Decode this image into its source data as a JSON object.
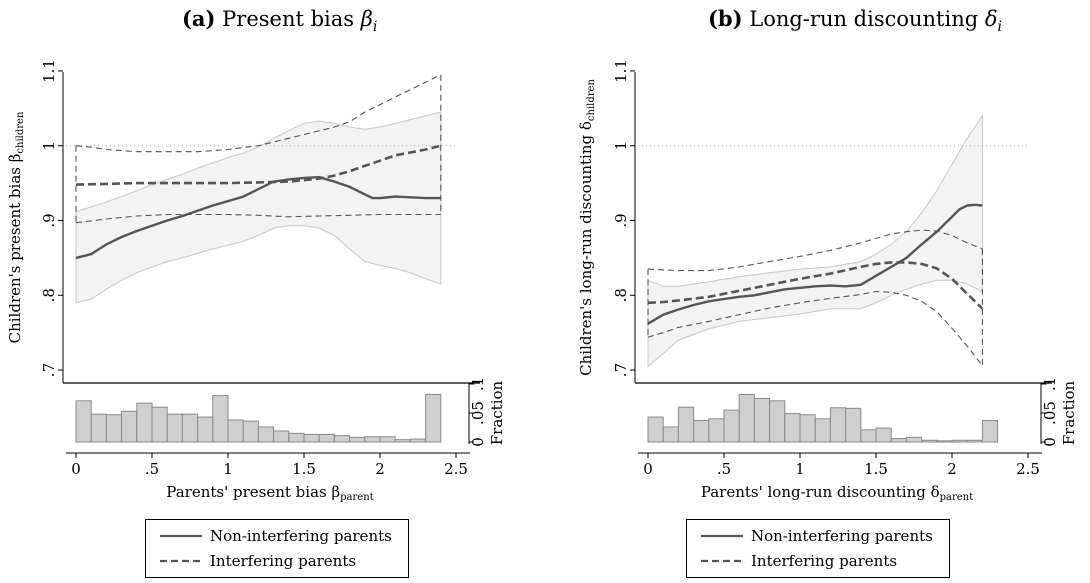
{
  "panels": [
    {
      "id": "a",
      "title": {
        "label": "(a)",
        "text": "Present bias",
        "symbol": "β",
        "subscript": "i"
      },
      "ylabel": {
        "text": "Children's present bias β",
        "sub": "children"
      },
      "xlabel": {
        "text": "Parents' present bias β",
        "sub": "parent"
      }
    },
    {
      "id": "b",
      "title": {
        "label": "(b)",
        "text": "Long-run discounting",
        "symbol": "δ",
        "subscript": "i"
      },
      "ylabel": {
        "text": "Children's long-run discounting δ",
        "sub": "children"
      },
      "xlabel": {
        "text": "Parents' long-run discounting δ",
        "sub": "parent"
      }
    }
  ],
  "histogram_ylabel": "Fraction",
  "legend": {
    "non_interfering": "Non-interfering parents",
    "interfering": "Interfering parents"
  },
  "colors": {
    "ci_fill": "#f3f3f3",
    "ci_edge": "#c8c8c8",
    "line_solid": "#555555",
    "line_dashed": "#555555",
    "hist_fill": "#cfcfcf",
    "hist_edge": "#8a8a8a",
    "reference_line": "#aaaaaa"
  },
  "chart_data": [
    {
      "type": "line",
      "panel": "a",
      "xlim": [
        0,
        2.5
      ],
      "xticks": [
        "0",
        ".5",
        "1",
        "1.5",
        "2",
        "2.5"
      ],
      "xtick_values": [
        0,
        0.5,
        1,
        1.5,
        2,
        2.5
      ],
      "ylim": [
        0.68,
        1.12
      ],
      "yticks": [
        ".7",
        ".8",
        ".9",
        "1",
        "1.1"
      ],
      "ytick_values": [
        0.7,
        0.8,
        0.9,
        1.0,
        1.1
      ],
      "reference_y": 1.0,
      "series": [
        {
          "name": "Non-interfering parents",
          "style": "solid",
          "x": [
            0,
            0.1,
            0.2,
            0.3,
            0.4,
            0.5,
            0.6,
            0.7,
            0.8,
            0.9,
            1.0,
            1.1,
            1.2,
            1.3,
            1.4,
            1.5,
            1.6,
            1.7,
            1.8,
            1.9,
            1.95,
            2.0,
            2.1,
            2.2,
            2.3,
            2.4
          ],
          "y": [
            0.85,
            0.855,
            0.868,
            0.878,
            0.886,
            0.893,
            0.9,
            0.906,
            0.913,
            0.92,
            0.926,
            0.932,
            0.942,
            0.952,
            0.955,
            0.957,
            0.958,
            0.952,
            0.945,
            0.935,
            0.93,
            0.93,
            0.932,
            0.931,
            0.93,
            0.93
          ]
        },
        {
          "name": "Non-interfering parents 95% CI upper",
          "style": "band",
          "x": [
            0,
            0.1,
            0.2,
            0.3,
            0.4,
            0.5,
            0.6,
            0.7,
            0.8,
            0.9,
            1.0,
            1.1,
            1.2,
            1.3,
            1.4,
            1.5,
            1.6,
            1.7,
            1.8,
            1.9,
            2.0,
            2.1,
            2.2,
            2.3,
            2.4
          ],
          "y": [
            0.912,
            0.918,
            0.925,
            0.932,
            0.94,
            0.948,
            0.955,
            0.962,
            0.97,
            0.977,
            0.984,
            0.99,
            0.998,
            1.01,
            1.02,
            1.03,
            1.033,
            1.03,
            1.025,
            1.022,
            1.025,
            1.03,
            1.035,
            1.04,
            1.045
          ]
        },
        {
          "name": "Non-interfering parents 95% CI lower",
          "style": "band",
          "x": [
            0,
            0.1,
            0.2,
            0.3,
            0.4,
            0.5,
            0.6,
            0.7,
            0.8,
            0.9,
            1.0,
            1.1,
            1.2,
            1.3,
            1.4,
            1.5,
            1.6,
            1.7,
            1.8,
            1.9,
            2.0,
            2.1,
            2.2,
            2.3,
            2.4
          ],
          "y": [
            0.79,
            0.795,
            0.808,
            0.82,
            0.83,
            0.838,
            0.845,
            0.85,
            0.856,
            0.862,
            0.867,
            0.872,
            0.88,
            0.89,
            0.893,
            0.893,
            0.89,
            0.88,
            0.862,
            0.845,
            0.84,
            0.836,
            0.83,
            0.822,
            0.815
          ]
        },
        {
          "name": "Interfering parents",
          "style": "dashed-thick",
          "x": [
            0,
            0.2,
            0.4,
            0.6,
            0.8,
            1.0,
            1.2,
            1.4,
            1.6,
            1.7,
            1.8,
            1.9,
            2.0,
            2.1,
            2.2,
            2.3,
            2.4
          ],
          "y": [
            0.948,
            0.949,
            0.95,
            0.95,
            0.95,
            0.95,
            0.951,
            0.952,
            0.956,
            0.96,
            0.966,
            0.973,
            0.98,
            0.987,
            0.991,
            0.995,
            1.0
          ]
        },
        {
          "name": "Interfering parents 95% CI upper",
          "style": "dashed-thin",
          "x": [
            0,
            0.1,
            0.2,
            0.4,
            0.6,
            0.8,
            1.0,
            1.2,
            1.4,
            1.6,
            1.7,
            1.8,
            1.9,
            2.0,
            2.1,
            2.2,
            2.3,
            2.4
          ],
          "y": [
            1.0,
            0.998,
            0.995,
            0.992,
            0.992,
            0.992,
            0.995,
            1.0,
            1.01,
            1.02,
            1.025,
            1.032,
            1.045,
            1.055,
            1.065,
            1.075,
            1.085,
            1.095
          ]
        },
        {
          "name": "Interfering parents 95% CI lower",
          "style": "dashed-thin",
          "x": [
            0,
            0.2,
            0.4,
            0.6,
            0.8,
            1.0,
            1.2,
            1.4,
            1.6,
            1.8,
            2.0,
            2.2,
            2.4
          ],
          "y": [
            0.897,
            0.902,
            0.906,
            0.908,
            0.908,
            0.908,
            0.907,
            0.905,
            0.906,
            0.907,
            0.908,
            0.908,
            0.908
          ]
        }
      ],
      "histogram": {
        "ylim": [
          0,
          0.1
        ],
        "yticks": [
          "0",
          ".05",
          ".1"
        ],
        "ytick_values": [
          0,
          0.05,
          0.1
        ],
        "bin_width": 0.1,
        "bin_starts": [
          0.0,
          0.1,
          0.2,
          0.3,
          0.4,
          0.5,
          0.6,
          0.7,
          0.8,
          0.9,
          1.0,
          1.1,
          1.2,
          1.3,
          1.4,
          1.5,
          1.6,
          1.7,
          1.8,
          1.9,
          2.0,
          2.1,
          2.2,
          2.3
        ],
        "values": [
          0.071,
          0.048,
          0.047,
          0.053,
          0.067,
          0.06,
          0.048,
          0.048,
          0.043,
          0.08,
          0.038,
          0.036,
          0.026,
          0.019,
          0.015,
          0.013,
          0.013,
          0.011,
          0.008,
          0.009,
          0.009,
          0.004,
          0.005,
          0.082
        ]
      }
    },
    {
      "type": "line",
      "panel": "b",
      "xlim": [
        0,
        2.5
      ],
      "xticks": [
        "0",
        ".5",
        "1",
        "1.5",
        "2",
        "2.5"
      ],
      "xtick_values": [
        0,
        0.5,
        1,
        1.5,
        2,
        2.5
      ],
      "ylim": [
        0.68,
        1.12
      ],
      "yticks": [
        ".7",
        ".8",
        ".9",
        "1",
        "1.1"
      ],
      "ytick_values": [
        0.7,
        0.8,
        0.9,
        1.0,
        1.1
      ],
      "reference_y": 1.0,
      "series": [
        {
          "name": "Non-interfering parents",
          "style": "solid",
          "x": [
            0,
            0.05,
            0.1,
            0.2,
            0.3,
            0.4,
            0.5,
            0.6,
            0.7,
            0.8,
            0.9,
            1.0,
            1.1,
            1.2,
            1.3,
            1.4,
            1.5,
            1.6,
            1.7,
            1.8,
            1.9,
            2.0,
            2.05,
            2.1,
            2.15,
            2.2
          ],
          "y": [
            0.762,
            0.768,
            0.774,
            0.781,
            0.787,
            0.792,
            0.795,
            0.798,
            0.8,
            0.804,
            0.808,
            0.81,
            0.812,
            0.813,
            0.812,
            0.814,
            0.826,
            0.838,
            0.85,
            0.868,
            0.885,
            0.905,
            0.915,
            0.92,
            0.921,
            0.92
          ]
        },
        {
          "name": "Non-interfering parents 95% CI upper",
          "style": "band",
          "x": [
            0,
            0.1,
            0.2,
            0.4,
            0.6,
            0.8,
            1.0,
            1.2,
            1.4,
            1.5,
            1.6,
            1.7,
            1.8,
            1.9,
            2.0,
            2.1,
            2.2
          ],
          "y": [
            0.82,
            0.812,
            0.812,
            0.818,
            0.825,
            0.83,
            0.835,
            0.838,
            0.845,
            0.855,
            0.868,
            0.885,
            0.91,
            0.94,
            0.975,
            1.01,
            1.04
          ]
        },
        {
          "name": "Non-interfering parents 95% CI lower",
          "style": "band",
          "x": [
            0,
            0.1,
            0.2,
            0.4,
            0.6,
            0.8,
            1.0,
            1.2,
            1.4,
            1.5,
            1.6,
            1.7,
            1.8,
            1.9,
            2.0,
            2.1,
            2.2
          ],
          "y": [
            0.705,
            0.722,
            0.74,
            0.755,
            0.765,
            0.77,
            0.775,
            0.782,
            0.782,
            0.79,
            0.8,
            0.808,
            0.815,
            0.82,
            0.82,
            0.815,
            0.805
          ]
        },
        {
          "name": "Interfering parents",
          "style": "dashed-thick",
          "x": [
            0,
            0.1,
            0.2,
            0.4,
            0.6,
            0.8,
            1.0,
            1.2,
            1.4,
            1.5,
            1.6,
            1.7,
            1.8,
            1.9,
            2.0,
            2.1,
            2.2
          ],
          "y": [
            0.79,
            0.791,
            0.793,
            0.798,
            0.806,
            0.814,
            0.822,
            0.829,
            0.838,
            0.842,
            0.844,
            0.844,
            0.842,
            0.836,
            0.822,
            0.802,
            0.782
          ]
        },
        {
          "name": "Interfering parents 95% CI upper",
          "style": "dashed-thin",
          "x": [
            0,
            0.2,
            0.4,
            0.6,
            0.8,
            1.0,
            1.2,
            1.4,
            1.5,
            1.6,
            1.7,
            1.8,
            1.9,
            2.0,
            2.1,
            2.2
          ],
          "y": [
            0.835,
            0.833,
            0.833,
            0.838,
            0.845,
            0.852,
            0.86,
            0.87,
            0.876,
            0.882,
            0.885,
            0.887,
            0.886,
            0.88,
            0.87,
            0.862
          ]
        },
        {
          "name": "Interfering parents 95% CI lower",
          "style": "dashed-thin",
          "x": [
            0,
            0.1,
            0.2,
            0.4,
            0.6,
            0.8,
            1.0,
            1.2,
            1.4,
            1.5,
            1.6,
            1.7,
            1.8,
            1.9,
            2.0,
            2.1,
            2.2
          ],
          "y": [
            0.744,
            0.75,
            0.757,
            0.765,
            0.774,
            0.783,
            0.79,
            0.796,
            0.801,
            0.805,
            0.804,
            0.8,
            0.792,
            0.778,
            0.756,
            0.732,
            0.706
          ]
        }
      ],
      "histogram": {
        "ylim": [
          0,
          0.1
        ],
        "yticks": [
          "0",
          ".05",
          ".1"
        ],
        "ytick_values": [
          0,
          0.05,
          0.1
        ],
        "bin_width": 0.1,
        "bin_starts": [
          0.0,
          0.1,
          0.2,
          0.3,
          0.4,
          0.5,
          0.6,
          0.7,
          0.8,
          0.9,
          1.0,
          1.1,
          1.2,
          1.3,
          1.4,
          1.5,
          1.6,
          1.7,
          1.8,
          1.9,
          2.0,
          2.1,
          2.2
        ],
        "values": [
          0.043,
          0.026,
          0.06,
          0.037,
          0.04,
          0.055,
          0.082,
          0.075,
          0.071,
          0.049,
          0.047,
          0.04,
          0.059,
          0.058,
          0.021,
          0.024,
          0.006,
          0.008,
          0.003,
          0.002,
          0.003,
          0.003,
          0.037
        ]
      }
    }
  ]
}
